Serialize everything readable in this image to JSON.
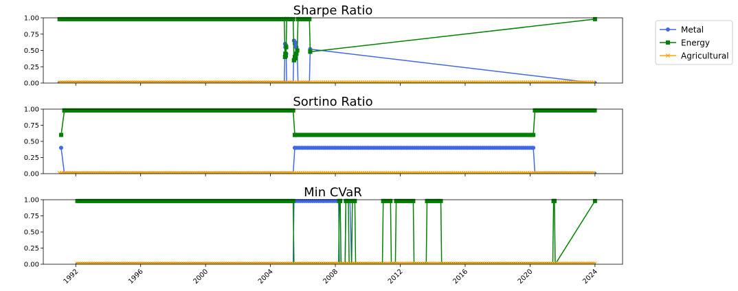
{
  "colors": {
    "metal": "#4169e1",
    "energy": "#008000",
    "agricultural": "#ffa500"
  },
  "legend": {
    "placement": "outside-right",
    "items": [
      {
        "label": "Metal",
        "color": "#4169e1",
        "marker": "circle"
      },
      {
        "label": "Energy",
        "color": "#008000",
        "marker": "square"
      },
      {
        "label": "Agricultural",
        "color": "#ffa500",
        "marker": "x"
      }
    ]
  },
  "x_ticks": [
    "1992",
    "1996",
    "2000",
    "2004",
    "2008",
    "2012",
    "2016",
    "2020",
    "2024"
  ],
  "chart_data": [
    {
      "type": "line",
      "title": "Sharpe Ratio",
      "xlim": [
        1990.0,
        2025.7
      ],
      "ylim": [
        0,
        1
      ],
      "y_ticks": [
        "0.00",
        "0.25",
        "0.50",
        "0.75",
        "1.00"
      ],
      "series": [
        {
          "name": "Metal",
          "color": "#4169e1",
          "marker": "circle",
          "x": [
            1991.0,
            2004.85,
            2004.9,
            2004.92,
            2004.95,
            2004.97,
            2005.0,
            2005.4,
            2005.45,
            2005.5,
            2005.55,
            2005.6,
            2005.65,
            2005.7,
            2006.4,
            2006.45,
            2024.0
          ],
          "y": [
            0,
            0,
            0.6,
            0.55,
            0.58,
            0.45,
            0,
            0,
            0.65,
            0.6,
            0.62,
            0.55,
            0.5,
            0,
            0,
            0.52,
            0
          ]
        },
        {
          "name": "Energy",
          "color": "#008000",
          "marker": "square",
          "x": [
            1991.0,
            2004.85,
            2004.9,
            2004.92,
            2004.95,
            2004.97,
            2005.0,
            2005.4,
            2005.45,
            2005.5,
            2005.55,
            2005.6,
            2005.65,
            2005.7,
            2006.4,
            2006.45,
            2024.0
          ],
          "y": [
            0.98,
            0.98,
            0.4,
            0.45,
            0.42,
            0.55,
            0.98,
            0.98,
            0.35,
            0.4,
            0.38,
            0.45,
            0.5,
            0.98,
            0.98,
            0.48,
            0.98
          ]
        },
        {
          "name": "Agricultural",
          "color": "#ffa500",
          "marker": "x",
          "x": [
            1991.0,
            2024.0
          ],
          "y": [
            0.01,
            0.01
          ]
        }
      ]
    },
    {
      "type": "line",
      "title": "Sortino Ratio",
      "xlim": [
        1990.0,
        2025.7
      ],
      "ylim": [
        0,
        1
      ],
      "y_ticks": [
        "0.00",
        "0.25",
        "0.50",
        "0.75",
        "1.00"
      ],
      "series": [
        {
          "name": "Metal",
          "color": "#4169e1",
          "marker": "circle",
          "x": [
            1991.1,
            1991.3,
            2005.4,
            2005.5,
            2020.2,
            2020.3,
            2024.0
          ],
          "y": [
            0.4,
            0,
            0,
            0.4,
            0.4,
            0,
            0
          ]
        },
        {
          "name": "Energy",
          "color": "#008000",
          "marker": "square",
          "x": [
            1991.1,
            1991.3,
            2005.4,
            2005.5,
            2020.2,
            2020.3,
            2024.0
          ],
          "y": [
            0.6,
            0.98,
            0.98,
            0.6,
            0.6,
            0.98,
            0.98
          ]
        },
        {
          "name": "Agricultural",
          "color": "#ffa500",
          "marker": "x",
          "x": [
            1991.0,
            2024.0
          ],
          "y": [
            0.01,
            0.01
          ]
        }
      ]
    },
    {
      "type": "line",
      "title": "Min CVaR",
      "xlim": [
        1990.0,
        2025.7
      ],
      "ylim": [
        0,
        1
      ],
      "y_ticks": [
        "0.00",
        "0.25",
        "0.50",
        "0.75",
        "1.00"
      ],
      "series": [
        {
          "name": "Metal",
          "color": "#4169e1",
          "marker": "circle",
          "x": [
            1992.1,
            2005.4,
            2005.45,
            2007.1,
            2007.3,
            2008.2,
            2008.25,
            2008.6,
            2008.65,
            2008.9,
            2009.0,
            2009.2,
            2024.0
          ],
          "y": [
            0,
            0,
            0.98,
            0.98,
            0.98,
            0.98,
            0,
            0,
            0.98,
            0.98,
            0,
            0,
            0
          ]
        },
        {
          "name": "Energy",
          "color": "#008000",
          "marker": "square",
          "x": [
            1992.1,
            2005.4,
            2005.45,
            2008.2,
            2008.25,
            2008.3,
            2008.35,
            2008.6,
            2008.65,
            2008.8,
            2008.85,
            2009.0,
            2009.05,
            2009.2,
            2009.25,
            2010.9,
            2010.95,
            2011.4,
            2011.45,
            2011.7,
            2011.75,
            2012.8,
            2012.85,
            2013.6,
            2013.65,
            2014.5,
            2014.55,
            2021.4,
            2021.45,
            2021.5,
            2021.55,
            2024.0
          ],
          "y": [
            0.98,
            0.98,
            0,
            0,
            0.98,
            0.98,
            0,
            0,
            0.98,
            0.98,
            0,
            0,
            0.98,
            0.98,
            0,
            0,
            0.98,
            0.98,
            0,
            0,
            0.98,
            0.98,
            0,
            0,
            0.98,
            0.98,
            0,
            0,
            0.98,
            0.98,
            0,
            0.98
          ]
        },
        {
          "name": "Agricultural",
          "color": "#ffa500",
          "marker": "x",
          "x": [
            1992.1,
            2024.0
          ],
          "y": [
            0.01,
            0.01
          ]
        }
      ]
    }
  ]
}
